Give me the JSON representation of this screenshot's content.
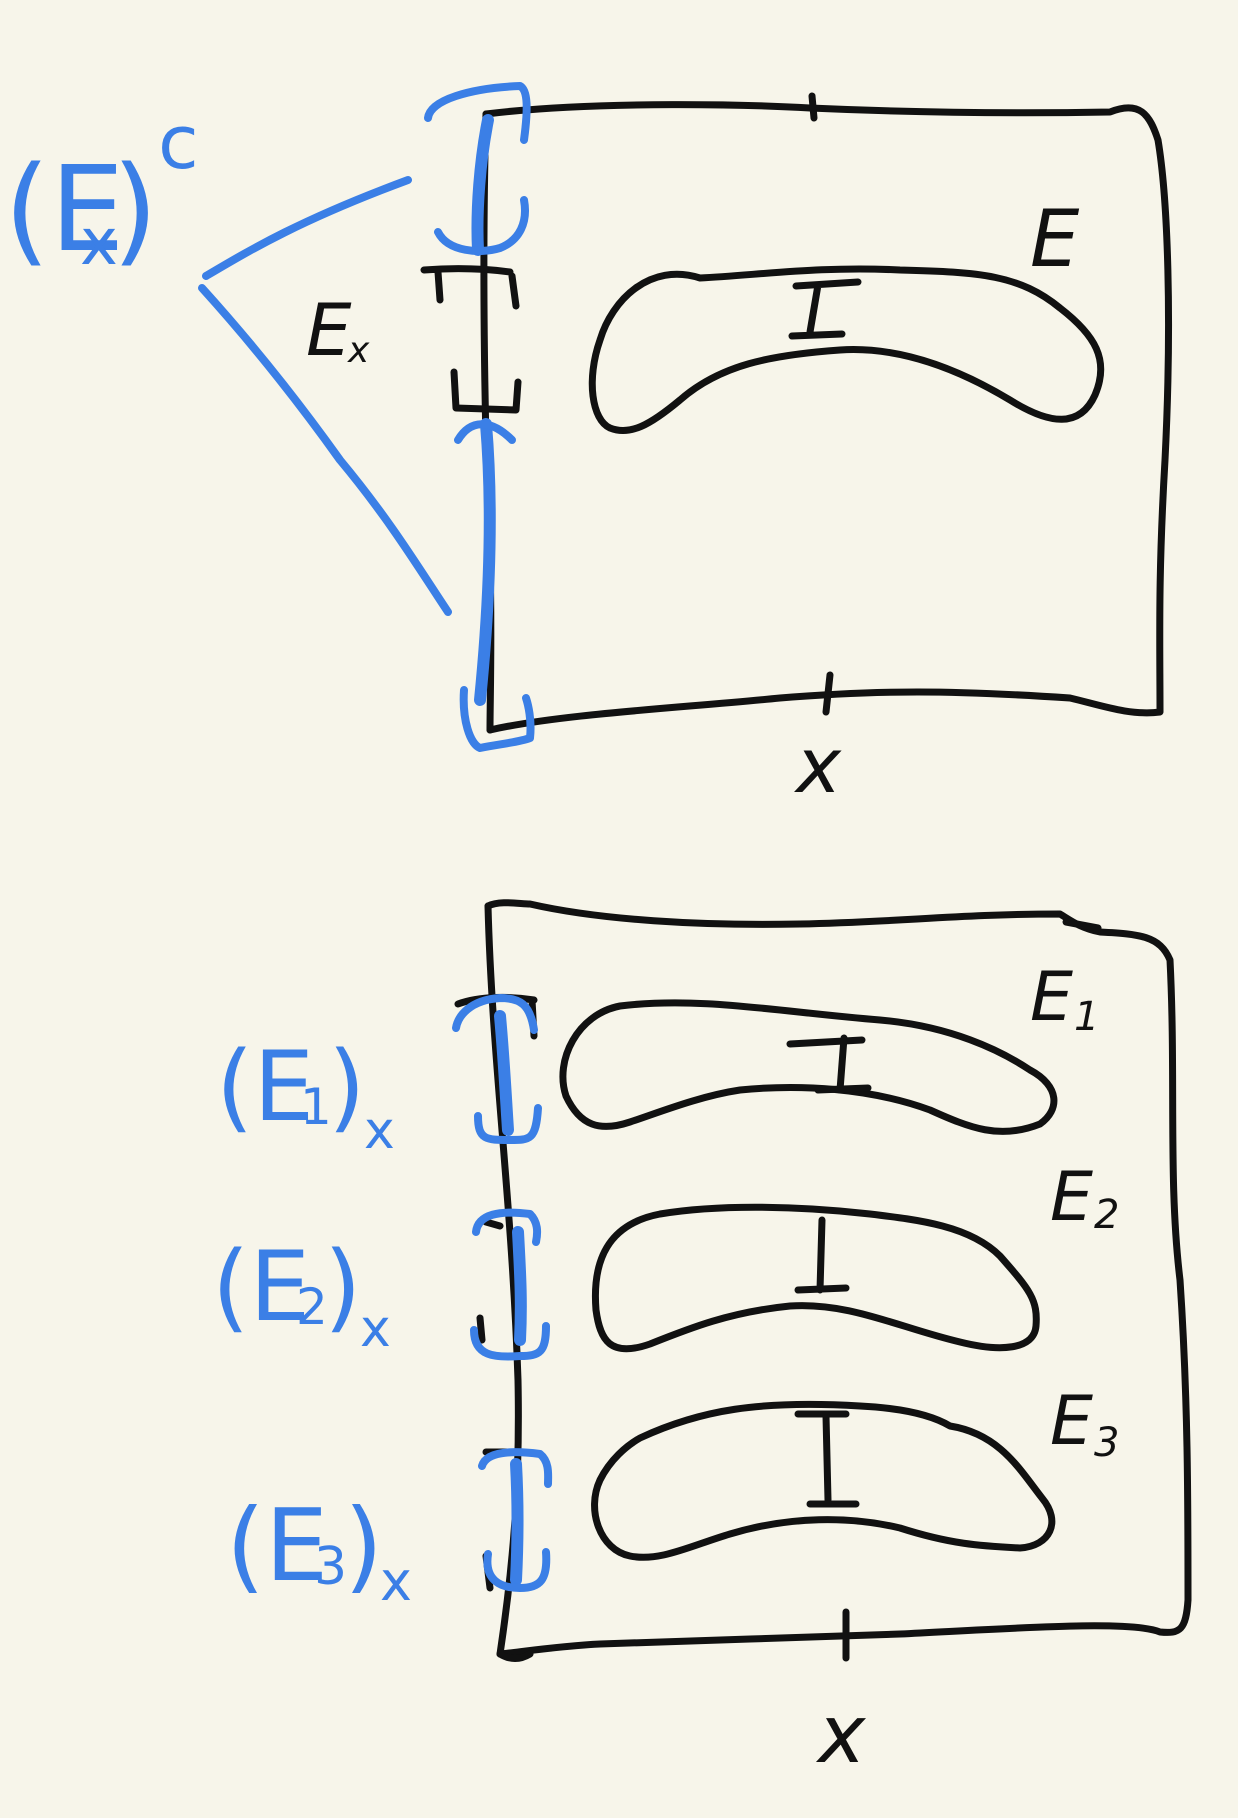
{
  "colors": {
    "background": "#f7f5ea",
    "ink": "#111111",
    "highlight": "#3b7fe6"
  },
  "top_figure": {
    "complement_label": "(E",
    "complement_sub": "x",
    "complement_close": ")",
    "complement_sup": "c",
    "section_label": "E",
    "section_sub": "x",
    "set_label": "E",
    "axis_label": "x"
  },
  "bottom_figure": {
    "sets": [
      {
        "label": "E",
        "sub": "1"
      },
      {
        "label": "E",
        "sub": "2"
      },
      {
        "label": "E",
        "sub": "3"
      }
    ],
    "sections": [
      {
        "open": "(E",
        "sub": "1",
        "close": ")",
        "subx": "x"
      },
      {
        "open": "(E",
        "sub": "2",
        "close": ")",
        "subx": "x"
      },
      {
        "open": "(E",
        "sub": "3",
        "close": ")",
        "subx": "x"
      }
    ],
    "axis_label": "x"
  }
}
